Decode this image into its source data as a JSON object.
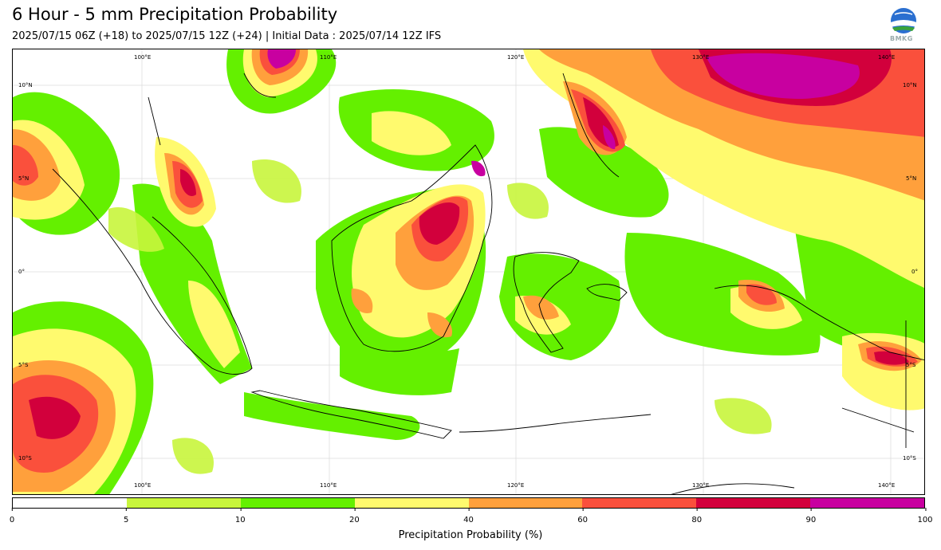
{
  "header": {
    "title": "6 Hour - 5 mm Precipitation Probability",
    "subtitle": "2025/07/15 06Z (+18) to 2025/07/15 12Z (+24) | Initial Data : 2025/07/14 12Z IFS",
    "logo_text": "BMKG"
  },
  "map": {
    "lon_top": [
      "100°E",
      "110°E",
      "120°E",
      "130°E",
      "140°E"
    ],
    "lon_bottom": [
      "100°E",
      "110°E",
      "120°E",
      "130°E",
      "140°E"
    ],
    "lat_left": [
      "10°N",
      "5°N",
      "0°",
      "5°S",
      "10°S"
    ],
    "lat_right": [
      "10°N",
      "5°N",
      "0°",
      "5°S",
      "10°S"
    ]
  },
  "legend": {
    "label": "Precipitation Probability (%)",
    "ticks": [
      "0",
      "5",
      "10",
      "20",
      "40",
      "60",
      "80",
      "90",
      "100"
    ],
    "colors": [
      "#ffffff",
      "#c8f53c",
      "#64f000",
      "#fffa6e",
      "#ffa03c",
      "#fa503c",
      "#d2003c",
      "#c800a0"
    ],
    "low_color": "#ffffff",
    "green_color": "#64f000",
    "yellow_color": "#fffa6e",
    "orange_color": "#ffa03c",
    "red_color": "#fa503c",
    "magenta_color": "#c800a0"
  }
}
